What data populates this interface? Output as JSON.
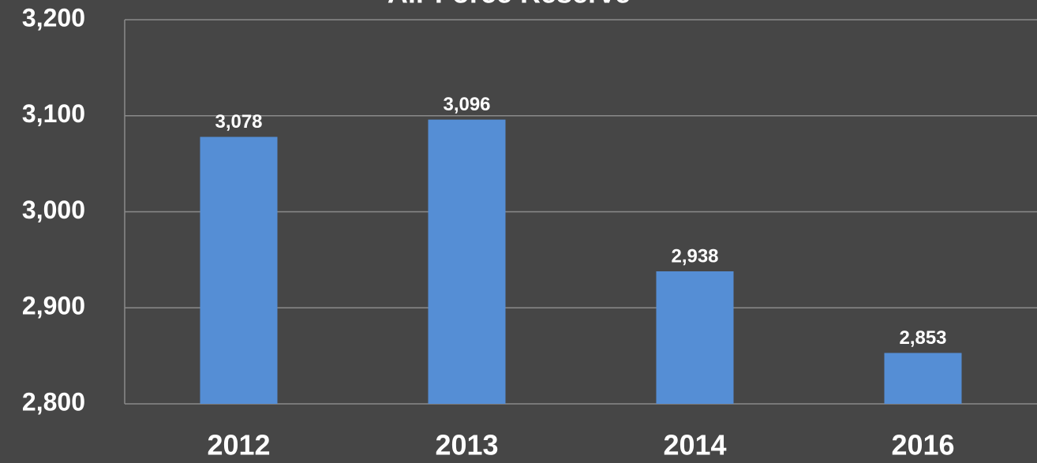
{
  "chart_data": {
    "type": "bar",
    "title": "Air Force Reserve",
    "categories": [
      "2012",
      "2013",
      "2014",
      "2016"
    ],
    "values": [
      3078,
      3096,
      2938,
      2853
    ],
    "value_labels": [
      "3,078",
      "3,096",
      "2,938",
      "2,853"
    ],
    "color": "#558ed5",
    "ylim": [
      2800,
      3200
    ],
    "yticks": [
      {
        "value": 2800,
        "label": "2,800"
      },
      {
        "value": 2900,
        "label": "2,900"
      },
      {
        "value": 3000,
        "label": "3,000"
      },
      {
        "value": 3100,
        "label": "3,100"
      },
      {
        "value": 3200,
        "label": "3,200"
      }
    ],
    "grid": true
  }
}
